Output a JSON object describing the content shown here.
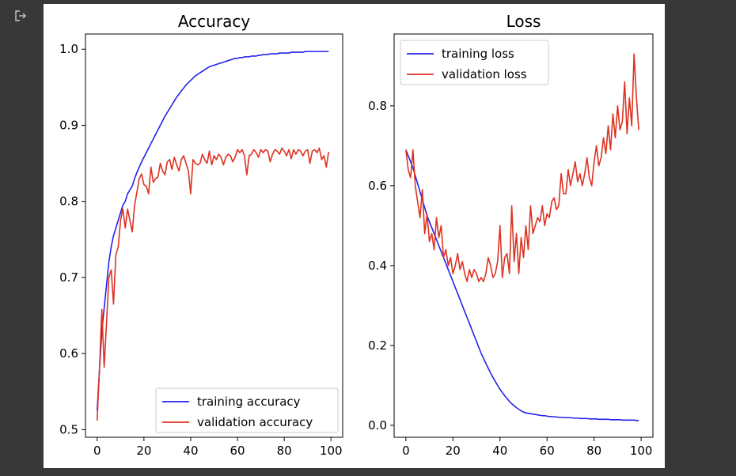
{
  "colors": {
    "page_background": "#383838",
    "figure_background": "#ffffff",
    "training": "#2222ee",
    "validation": "#dd3322",
    "icon": "#c8c8c8"
  },
  "output_icon": "output-redirect-icon",
  "chart_data": [
    {
      "type": "line",
      "title": "Accuracy",
      "xlabel": "",
      "ylabel": "",
      "xlim": [
        -5,
        105
      ],
      "ylim": [
        0.49,
        1.02
      ],
      "xticks": [
        0,
        20,
        40,
        60,
        80,
        100
      ],
      "xtick_labels": [
        "0",
        "20",
        "40",
        "60",
        "80",
        "100"
      ],
      "yticks": [
        0.5,
        0.6,
        0.7,
        0.8,
        0.9,
        1.0
      ],
      "ytick_labels": [
        "0.5",
        "0.6",
        "0.7",
        "0.8",
        "0.9",
        "1.0"
      ],
      "grid": false,
      "legend_position": "lower-right",
      "x": [
        0,
        1,
        2,
        3,
        4,
        5,
        6,
        7,
        8,
        9,
        10,
        11,
        12,
        13,
        14,
        15,
        16,
        17,
        18,
        19,
        20,
        21,
        22,
        23,
        24,
        25,
        26,
        27,
        28,
        29,
        30,
        31,
        32,
        33,
        34,
        35,
        36,
        37,
        38,
        39,
        40,
        41,
        42,
        43,
        44,
        45,
        46,
        47,
        48,
        49,
        50,
        51,
        52,
        53,
        54,
        55,
        56,
        57,
        58,
        59,
        60,
        61,
        62,
        63,
        64,
        65,
        66,
        67,
        68,
        69,
        70,
        71,
        72,
        73,
        74,
        75,
        76,
        77,
        78,
        79,
        80,
        81,
        82,
        83,
        84,
        85,
        86,
        87,
        88,
        89,
        90,
        91,
        92,
        93,
        94,
        95,
        96,
        97,
        98,
        99
      ],
      "series": [
        {
          "name": "training accuracy",
          "color": "#2222ee",
          "values": [
            0.525,
            0.58,
            0.63,
            0.66,
            0.69,
            0.72,
            0.74,
            0.755,
            0.765,
            0.775,
            0.785,
            0.795,
            0.8,
            0.81,
            0.815,
            0.82,
            0.83,
            0.838,
            0.845,
            0.852,
            0.858,
            0.864,
            0.87,
            0.876,
            0.882,
            0.888,
            0.894,
            0.9,
            0.906,
            0.912,
            0.917,
            0.922,
            0.927,
            0.932,
            0.937,
            0.941,
            0.945,
            0.949,
            0.953,
            0.956,
            0.959,
            0.962,
            0.965,
            0.967,
            0.969,
            0.971,
            0.973,
            0.975,
            0.977,
            0.978,
            0.979,
            0.98,
            0.981,
            0.982,
            0.983,
            0.984,
            0.985,
            0.986,
            0.987,
            0.988,
            0.988,
            0.989,
            0.989,
            0.99,
            0.99,
            0.99,
            0.991,
            0.991,
            0.991,
            0.992,
            0.992,
            0.993,
            0.993,
            0.993,
            0.994,
            0.994,
            0.994,
            0.994,
            0.995,
            0.995,
            0.995,
            0.995,
            0.995,
            0.996,
            0.996,
            0.996,
            0.996,
            0.996,
            0.996,
            0.997,
            0.997,
            0.997,
            0.997,
            0.997,
            0.997,
            0.997,
            0.997,
            0.997,
            0.997,
            0.997
          ]
        },
        {
          "name": "validation accuracy",
          "color": "#dd3322",
          "values": [
            0.512,
            0.58,
            0.658,
            0.582,
            0.64,
            0.7,
            0.71,
            0.665,
            0.73,
            0.74,
            0.775,
            0.79,
            0.765,
            0.79,
            0.775,
            0.76,
            0.795,
            0.812,
            0.83,
            0.836,
            0.822,
            0.82,
            0.81,
            0.845,
            0.825,
            0.83,
            0.832,
            0.85,
            0.84,
            0.835,
            0.852,
            0.855,
            0.842,
            0.858,
            0.848,
            0.84,
            0.855,
            0.86,
            0.85,
            0.84,
            0.81,
            0.855,
            0.85,
            0.848,
            0.85,
            0.862,
            0.855,
            0.85,
            0.866,
            0.848,
            0.86,
            0.855,
            0.862,
            0.858,
            0.848,
            0.858,
            0.862,
            0.86,
            0.852,
            0.858,
            0.868,
            0.864,
            0.868,
            0.86,
            0.835,
            0.86,
            0.862,
            0.868,
            0.864,
            0.858,
            0.868,
            0.864,
            0.868,
            0.866,
            0.852,
            0.862,
            0.868,
            0.866,
            0.862,
            0.87,
            0.866,
            0.86,
            0.868,
            0.856,
            0.868,
            0.862,
            0.868,
            0.866,
            0.86,
            0.866,
            0.868,
            0.85,
            0.866,
            0.868,
            0.864,
            0.87,
            0.855,
            0.86,
            0.845,
            0.865
          ]
        }
      ]
    },
    {
      "type": "line",
      "title": "Loss",
      "xlabel": "",
      "ylabel": "",
      "xlim": [
        -5,
        105
      ],
      "ylim": [
        -0.03,
        0.98
      ],
      "xticks": [
        0,
        20,
        40,
        60,
        80,
        100
      ],
      "xtick_labels": [
        "0",
        "20",
        "40",
        "60",
        "80",
        "100"
      ],
      "yticks": [
        0.0,
        0.2,
        0.4,
        0.6,
        0.8
      ],
      "ytick_labels": [
        "0.0",
        "0.2",
        "0.4",
        "0.6",
        "0.8"
      ],
      "grid": false,
      "legend_position": "top-left",
      "x": [
        0,
        1,
        2,
        3,
        4,
        5,
        6,
        7,
        8,
        9,
        10,
        11,
        12,
        13,
        14,
        15,
        16,
        17,
        18,
        19,
        20,
        21,
        22,
        23,
        24,
        25,
        26,
        27,
        28,
        29,
        30,
        31,
        32,
        33,
        34,
        35,
        36,
        37,
        38,
        39,
        40,
        41,
        42,
        43,
        44,
        45,
        46,
        47,
        48,
        49,
        50,
        51,
        52,
        53,
        54,
        55,
        56,
        57,
        58,
        59,
        60,
        61,
        62,
        63,
        64,
        65,
        66,
        67,
        68,
        69,
        70,
        71,
        72,
        73,
        74,
        75,
        76,
        77,
        78,
        79,
        80,
        81,
        82,
        83,
        84,
        85,
        86,
        87,
        88,
        89,
        90,
        91,
        92,
        93,
        94,
        95,
        96,
        97,
        98,
        99
      ],
      "series": [
        {
          "name": "training loss",
          "color": "#2222ee",
          "values": [
            0.69,
            0.675,
            0.66,
            0.645,
            0.625,
            0.605,
            0.585,
            0.565,
            0.545,
            0.525,
            0.51,
            0.495,
            0.48,
            0.465,
            0.45,
            0.435,
            0.42,
            0.405,
            0.39,
            0.375,
            0.36,
            0.345,
            0.33,
            0.315,
            0.3,
            0.285,
            0.27,
            0.255,
            0.24,
            0.225,
            0.21,
            0.195,
            0.18,
            0.168,
            0.155,
            0.143,
            0.131,
            0.12,
            0.11,
            0.1,
            0.09,
            0.082,
            0.074,
            0.067,
            0.06,
            0.054,
            0.049,
            0.044,
            0.04,
            0.036,
            0.033,
            0.031,
            0.03,
            0.029,
            0.028,
            0.027,
            0.026,
            0.025,
            0.024,
            0.024,
            0.023,
            0.022,
            0.022,
            0.021,
            0.021,
            0.02,
            0.02,
            0.02,
            0.019,
            0.019,
            0.019,
            0.018,
            0.018,
            0.018,
            0.017,
            0.017,
            0.017,
            0.017,
            0.016,
            0.016,
            0.016,
            0.016,
            0.015,
            0.015,
            0.015,
            0.015,
            0.015,
            0.014,
            0.014,
            0.014,
            0.014,
            0.014,
            0.013,
            0.013,
            0.013,
            0.013,
            0.013,
            0.013,
            0.012,
            0.012
          ]
        },
        {
          "name": "validation loss",
          "color": "#dd3322",
          "values": [
            0.69,
            0.64,
            0.62,
            0.69,
            0.6,
            0.56,
            0.52,
            0.59,
            0.48,
            0.53,
            0.46,
            0.48,
            0.44,
            0.52,
            0.47,
            0.5,
            0.42,
            0.44,
            0.4,
            0.42,
            0.38,
            0.4,
            0.43,
            0.39,
            0.41,
            0.38,
            0.36,
            0.39,
            0.37,
            0.39,
            0.38,
            0.36,
            0.37,
            0.36,
            0.38,
            0.42,
            0.4,
            0.37,
            0.38,
            0.41,
            0.5,
            0.37,
            0.42,
            0.43,
            0.38,
            0.55,
            0.41,
            0.48,
            0.38,
            0.47,
            0.42,
            0.5,
            0.44,
            0.55,
            0.48,
            0.5,
            0.52,
            0.51,
            0.55,
            0.5,
            0.53,
            0.52,
            0.56,
            0.57,
            0.54,
            0.55,
            0.63,
            0.58,
            0.58,
            0.64,
            0.6,
            0.63,
            0.66,
            0.61,
            0.63,
            0.6,
            0.63,
            0.67,
            0.62,
            0.6,
            0.66,
            0.7,
            0.65,
            0.67,
            0.72,
            0.68,
            0.75,
            0.69,
            0.78,
            0.72,
            0.8,
            0.74,
            0.76,
            0.86,
            0.73,
            0.82,
            0.75,
            0.93,
            0.82,
            0.74
          ]
        }
      ]
    }
  ]
}
